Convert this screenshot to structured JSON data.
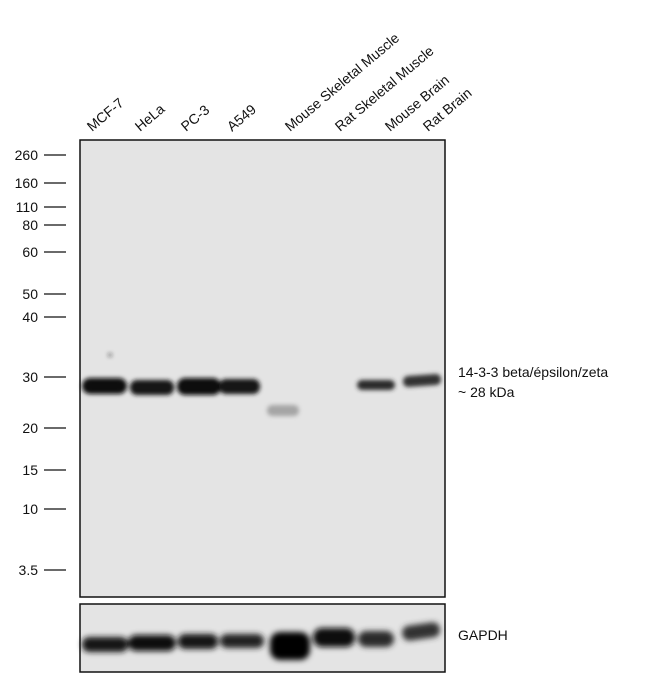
{
  "lanes": [
    "MCF-7",
    "HeLa",
    "PC-3",
    "A549",
    "Mouse Skeletal Muscle",
    "Rat Skeletal Muscle",
    "Mouse Brain",
    "Rat Brain"
  ],
  "markers": [
    "260",
    "160",
    "110",
    "80",
    "60",
    "50",
    "40",
    "30",
    "20",
    "15",
    "10",
    "3.5"
  ],
  "annotation": {
    "line1": "14-3-3 beta/épsilon/zeta",
    "line2": "~ 28 kDa"
  },
  "loading_control": "GAPDH"
}
